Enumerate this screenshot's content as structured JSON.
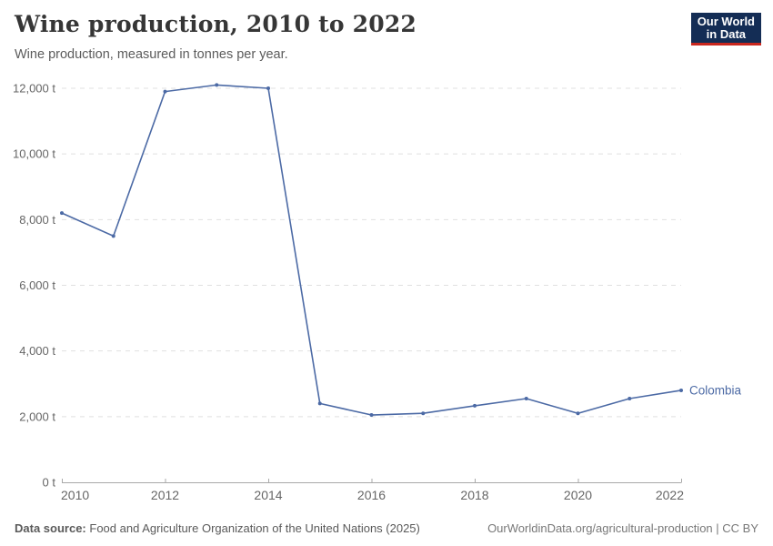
{
  "header": {
    "title": "Wine production, 2010 to 2022",
    "subtitle": "Wine production, measured in tonnes per year."
  },
  "logo": {
    "line1": "Our World",
    "line2": "in Data",
    "bg_color": "#142d55",
    "accent_color": "#c9271e"
  },
  "chart_data": {
    "type": "line",
    "title": "Wine production, 2010 to 2022",
    "xlabel": "",
    "ylabel": "tonnes per year",
    "x": [
      2010,
      2011,
      2012,
      2013,
      2014,
      2015,
      2016,
      2017,
      2018,
      2019,
      2020,
      2021,
      2022
    ],
    "series": [
      {
        "name": "Colombia",
        "color": "#4c6aa5",
        "values": [
          8200,
          7500,
          11900,
          12100,
          12000,
          2400,
          2050,
          2100,
          2330,
          2550,
          2100,
          2550,
          2800
        ]
      }
    ],
    "xlim": [
      2010,
      2022
    ],
    "ylim": [
      0,
      12000
    ],
    "xticks": [
      2010,
      2012,
      2014,
      2016,
      2018,
      2020,
      2022
    ],
    "yticks": [
      0,
      2000,
      4000,
      6000,
      8000,
      10000,
      12000
    ],
    "ytick_suffix": " t",
    "grid": "horizontal-dashed",
    "legend_position": "end-of-line-label"
  },
  "footer": {
    "source_label": "Data source:",
    "source_text": "Food and Agriculture Organization of the United Nations (2025)",
    "credit": "OurWorldinData.org/agricultural-production | CC BY"
  },
  "colors": {
    "series_line": "#4c6aa5",
    "gridline": "#e0e0e0",
    "axis": "#a9a9a9",
    "axis_label": "#666666",
    "title_text": "#363636",
    "subtitle_text": "#5b5b5b"
  }
}
